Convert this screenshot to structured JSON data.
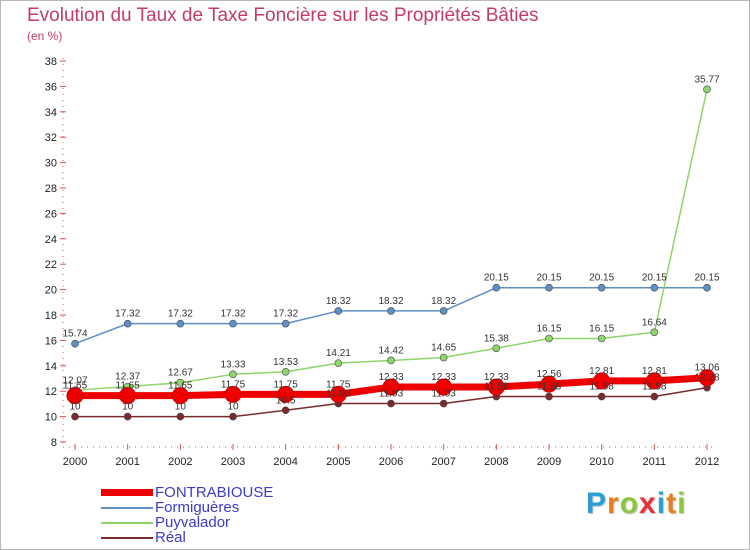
{
  "title": "Evolution du Taux de Taxe Foncière sur les Propriétés Bâties",
  "unit": "(en %)",
  "logo": {
    "letters": [
      "P",
      "r",
      "o",
      "x",
      "i",
      "t",
      "i"
    ],
    "colors": [
      "#2a9fd6",
      "#e87d1e",
      "#8cc63f",
      "#e9303a",
      "#2a9fd6",
      "#e87d1e",
      "#8cc63f"
    ]
  },
  "chart_data": {
    "type": "line",
    "title": "Evolution du Taux de Taxe Foncière sur les Propriétés Bâties",
    "ylabel": "(en %)",
    "xlabel": "",
    "x": [
      "2000",
      "2001",
      "2002",
      "2003",
      "2004",
      "2005",
      "2006",
      "2007",
      "2008",
      "2009",
      "2010",
      "2011",
      "2012"
    ],
    "ylim": [
      8,
      38
    ],
    "yticks": [
      8,
      10,
      12,
      14,
      16,
      18,
      20,
      22,
      24,
      26,
      28,
      30,
      32,
      34,
      36,
      38
    ],
    "grid": false,
    "legend_position": "bottom-left",
    "series": [
      {
        "name": "FONTRABIOUSE",
        "color": "#ee0000",
        "width": 7,
        "marker": 8,
        "values": [
          11.65,
          11.65,
          11.65,
          11.75,
          11.75,
          11.75,
          12.33,
          12.33,
          12.33,
          12.56,
          12.81,
          12.81,
          13.06
        ],
        "labels": [
          "11.65",
          "11.65",
          "11.65",
          "11.75",
          "11.75",
          "11.75",
          "12.33",
          "12.33",
          "12.33",
          "12.56",
          "12.81",
          "12.81",
          "13.06"
        ]
      },
      {
        "name": "Formiguères",
        "color": "#5e8fc5",
        "width": 1.5,
        "marker": 3.5,
        "values": [
          15.74,
          17.32,
          17.32,
          17.32,
          17.32,
          18.32,
          18.32,
          18.32,
          20.15,
          20.15,
          20.15,
          20.15,
          20.15
        ],
        "labels": [
          "15.74",
          "17.32",
          "17.32",
          "17.32",
          "17.32",
          "18.32",
          "18.32",
          "18.32",
          "20.15",
          "20.15",
          "20.15",
          "20.15",
          "20.15"
        ]
      },
      {
        "name": "Puyvalador",
        "color": "#8fd66a",
        "width": 1.5,
        "marker": 3.5,
        "values": [
          12.07,
          12.37,
          12.67,
          13.33,
          13.53,
          14.21,
          14.42,
          14.65,
          15.38,
          16.15,
          16.15,
          16.64,
          35.77
        ],
        "labels": [
          "12.07",
          "12.37",
          "12.67",
          "13.33",
          "13.53",
          "14.21",
          "14.42",
          "14.65",
          "15.38",
          "16.15",
          "16.15",
          "16.64",
          "35.77"
        ]
      },
      {
        "name": "Réal",
        "color": "#7a2a2a",
        "width": 1.5,
        "marker": 3.5,
        "values": [
          10,
          10,
          10,
          10,
          10.5,
          11.03,
          11.03,
          11.03,
          11.58,
          11.58,
          11.58,
          11.58,
          12.28
        ],
        "labels": [
          "10",
          "10",
          "10",
          "10",
          "10.5",
          "11.03",
          "11.03",
          "11.03",
          "11.58",
          "11.58",
          "11.58",
          "11.58",
          "12.28"
        ]
      }
    ]
  }
}
